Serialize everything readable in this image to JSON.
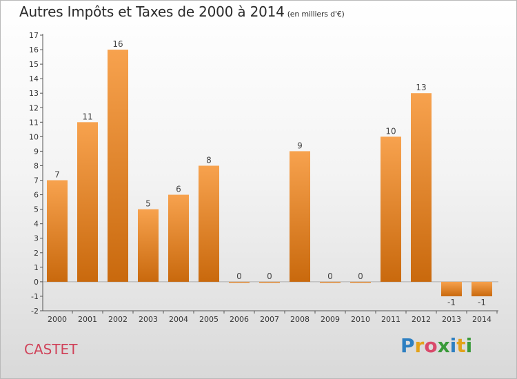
{
  "header": {
    "title": "Autres Impôts et Taxes de 2000 à 2014",
    "subtitle": "(en milliers d'€)"
  },
  "location": "CASTET",
  "logo": {
    "text": "Proxiti",
    "letters": [
      {
        "ch": "P",
        "color": "#2d7fc1"
      },
      {
        "ch": "r",
        "color": "#e3a21a"
      },
      {
        "ch": "o",
        "color": "#d94a6b"
      },
      {
        "ch": "x",
        "color": "#3a9a3a"
      },
      {
        "ch": "i",
        "color": "#2d7fc1"
      },
      {
        "ch": "t",
        "color": "#e3a21a"
      },
      {
        "ch": "i",
        "color": "#3a9a3a"
      }
    ]
  },
  "colors": {
    "bar_light": "#f7a24e",
    "bar_dark": "#c9690d",
    "axis": "#555555",
    "location": "#d0435a"
  },
  "chart_data": {
    "type": "bar",
    "title": "Autres Impôts et Taxes de 2000 à 2014",
    "subtitle": "(en milliers d'€)",
    "categories": [
      "2000",
      "2001",
      "2002",
      "2003",
      "2004",
      "2005",
      "2006",
      "2007",
      "2008",
      "2009",
      "2010",
      "2011",
      "2012",
      "2013",
      "2014"
    ],
    "values": [
      7,
      11,
      16,
      5,
      6,
      8,
      0,
      0,
      9,
      0,
      0,
      10,
      13,
      -1,
      -1
    ],
    "value_labels": [
      "7",
      "11",
      "16",
      "5",
      "6",
      "8",
      "0",
      "0",
      "9",
      "0",
      "0",
      "10",
      "13",
      "-1",
      "-1"
    ],
    "yticks": [
      -2,
      -1,
      0,
      1,
      2,
      3,
      4,
      5,
      6,
      7,
      8,
      9,
      10,
      11,
      12,
      13,
      14,
      15,
      16,
      17
    ],
    "ytick_labels": [
      "-2",
      "-1",
      "0",
      "1",
      "2",
      "3",
      "4",
      "5",
      "6",
      "7",
      "8",
      "9",
      "10",
      "11",
      "12",
      "13",
      "14",
      "15",
      "16",
      "17"
    ],
    "ylim": [
      -2,
      17
    ],
    "xlabel": "",
    "ylabel": "",
    "grid": false,
    "legend": "none"
  }
}
